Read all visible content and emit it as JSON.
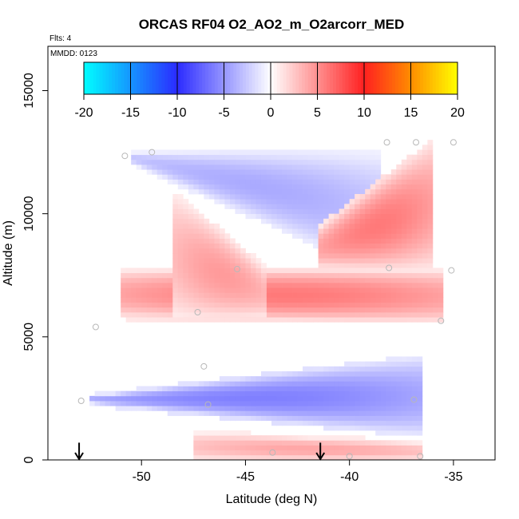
{
  "chart_data": {
    "type": "heatmap",
    "title": "ORCAS RF04 O2_AO2_m_O2arcorr_MED",
    "flights_label": "Flts: 4",
    "mmdd_label": "MMDD: 0123",
    "xlabel": "Latitude (deg N)",
    "ylabel": "Altitude (m)",
    "xlim": [
      -54.5,
      -33.0
    ],
    "ylim": [
      0,
      16800
    ],
    "xticks": [
      -50,
      -45,
      -40,
      -35
    ],
    "xtick_labels": [
      "-50",
      "-45",
      "-40",
      "-35"
    ],
    "yticks": [
      0,
      5000,
      10000,
      15000
    ],
    "ytick_labels": [
      "0",
      "5000",
      "10000",
      "15000"
    ],
    "colorbar": {
      "range": [
        -20,
        20
      ],
      "ticks": [
        -20,
        -15,
        -10,
        -5,
        0,
        5,
        10,
        15,
        20
      ],
      "tick_labels": [
        "-20",
        "-15",
        "-10",
        "-5",
        "0",
        "5",
        "10",
        "15",
        "20"
      ],
      "colors": {
        "neg20": "#00ffff",
        "neg10": "#2b2bff",
        "zero": "#ffffff",
        "pos10": "#ff2020",
        "pos15": "#ff8c00",
        "pos20": "#ffff00"
      }
    },
    "regions": [
      {
        "name": "upper-left-blue-band",
        "lat": [
          -50.5,
          -38.5
        ],
        "alt_top": [
          12500,
          12400
        ],
        "alt_bottom": [
          12000,
          7600
        ],
        "value": -4.0
      },
      {
        "name": "upper-right-red-wedge",
        "lat": [
          -41.5,
          -36.0
        ],
        "alt_top": [
          9500,
          13000
        ],
        "alt_bottom": [
          7800,
          7800
        ],
        "value": 6.0
      },
      {
        "name": "mid-red-layer",
        "lat": [
          -51.0,
          -35.5
        ],
        "alt_top": [
          7700,
          7700
        ],
        "alt_bottom": [
          5800,
          5600
        ],
        "value": 6.0
      },
      {
        "name": "upper-left-red-triangle",
        "lat": [
          -48.5,
          -44.0
        ],
        "alt_top": [
          10800,
          7700
        ],
        "alt_bottom": [
          5800,
          5800
        ],
        "value": 4.5
      },
      {
        "name": "lower-blue-layer",
        "lat": [
          -52.5,
          -36.5
        ],
        "alt_top": [
          2600,
          4200
        ],
        "alt_bottom": [
          2300,
          1000
        ],
        "value": -6.0
      },
      {
        "name": "surface-red-band",
        "lat": [
          -47.5,
          -36.5
        ],
        "alt_top": [
          1100,
          700
        ],
        "alt_bottom": [
          0,
          0
        ],
        "value": 4.0
      }
    ],
    "sample_points": [
      {
        "lat": -50.8,
        "alt": 12350
      },
      {
        "lat": -49.5,
        "alt": 12500
      },
      {
        "lat": -38.2,
        "alt": 12900
      },
      {
        "lat": -36.8,
        "alt": 12900
      },
      {
        "lat": -35.0,
        "alt": 12900
      },
      {
        "lat": -45.4,
        "alt": 7750
      },
      {
        "lat": -38.1,
        "alt": 7800
      },
      {
        "lat": -35.1,
        "alt": 7700
      },
      {
        "lat": -47.3,
        "alt": 6000
      },
      {
        "lat": -52.2,
        "alt": 5400
      },
      {
        "lat": -35.6,
        "alt": 5650
      },
      {
        "lat": -47.0,
        "alt": 3800
      },
      {
        "lat": -52.9,
        "alt": 2400
      },
      {
        "lat": -46.8,
        "alt": 2250
      },
      {
        "lat": -36.9,
        "alt": 2450
      },
      {
        "lat": -43.7,
        "alt": 300
      },
      {
        "lat": -40.0,
        "alt": 150
      },
      {
        "lat": -36.6,
        "alt": 150
      }
    ],
    "arrows": [
      {
        "lat": -53.0,
        "alt_range": [
          0,
          700
        ]
      },
      {
        "lat": -41.4,
        "alt_range": [
          0,
          700
        ]
      }
    ]
  }
}
